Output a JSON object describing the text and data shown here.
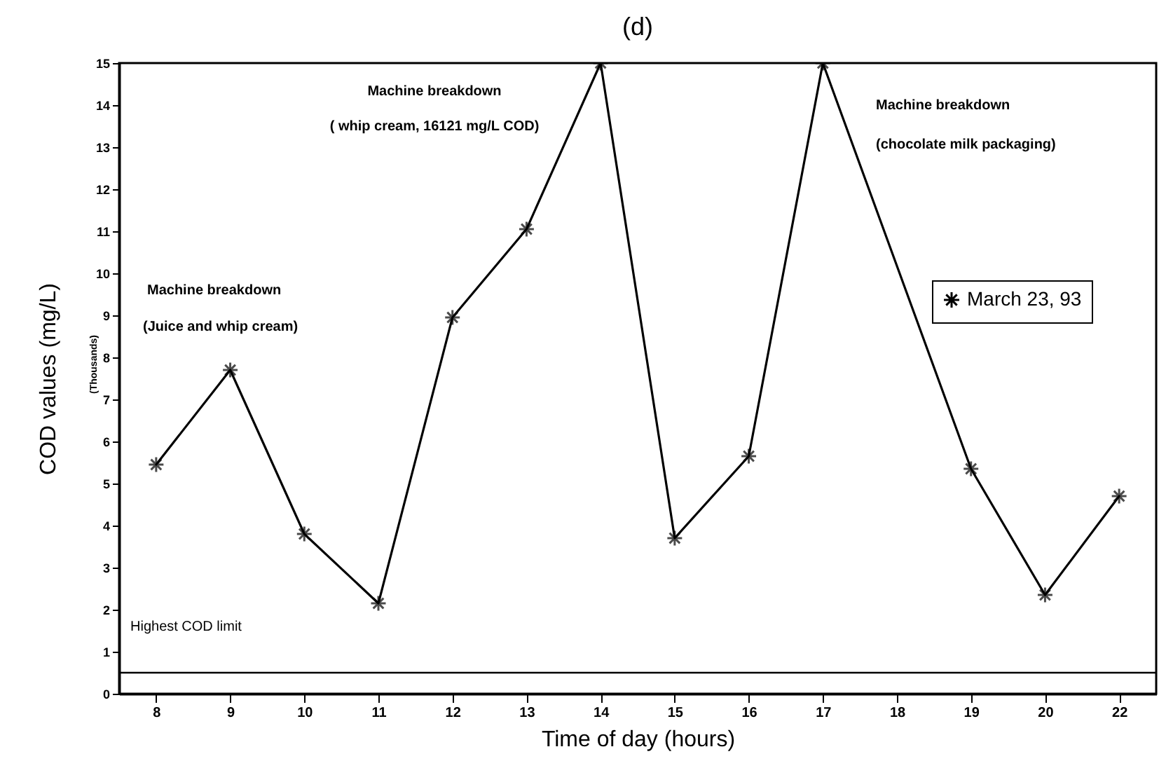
{
  "chart_data": {
    "type": "line",
    "title": "(d)",
    "xlabel": "Time of day (hours)",
    "ylabel": "COD values (mg/L)",
    "categories": [
      "8",
      "9",
      "10",
      "11",
      "12",
      "13",
      "14",
      "15",
      "16",
      "17",
      "18",
      "19",
      "20",
      "22"
    ],
    "series": [
      {
        "name": "March 23, 93",
        "color": "#000000",
        "values": [
          5.45,
          7.7,
          3.8,
          2.15,
          8.95,
          11.05,
          15,
          3.7,
          5.65,
          15,
          null,
          5.35,
          2.35,
          4.7
        ]
      }
    ],
    "ylim": [
      0,
      15
    ],
    "yticks": [
      0,
      1,
      2,
      3,
      4,
      5,
      6,
      7,
      8,
      9,
      10,
      11,
      12,
      13,
      14,
      15
    ],
    "ref_lines": [
      {
        "axis": "y",
        "value": 0.5,
        "label": "Highest COD limit",
        "color": "#000000"
      }
    ],
    "annotations": [
      "(Thousands)",
      "Machine breakdown",
      "(Juice and whip cream)",
      "Machine breakdown",
      "( whip cream, 16121 mg/L COD)",
      "Machine breakdown",
      "(chocolate milk packaging)"
    ],
    "grid": false,
    "legend": "right",
    "marker": "cross",
    "line_style": "solid"
  }
}
